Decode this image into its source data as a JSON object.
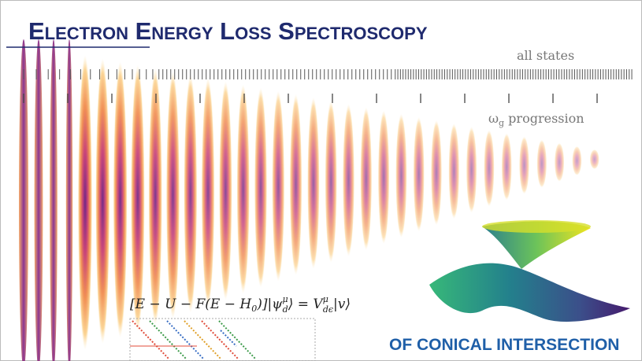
{
  "title": "Electron Energy Loss Spectroscopy",
  "all_states_label": "all states",
  "progression_label": {
    "symbol": "ω",
    "subscript": "g",
    "text": " progression"
  },
  "equation": [
    "[E − U − F(E − H",
    "0",
    ")]|ψ",
    "μ",
    "d",
    "⟩ = V",
    "μ",
    "dϵ",
    "|v⟩"
  ],
  "subtitle": "OF CONICAL INTERSECTION"
}
